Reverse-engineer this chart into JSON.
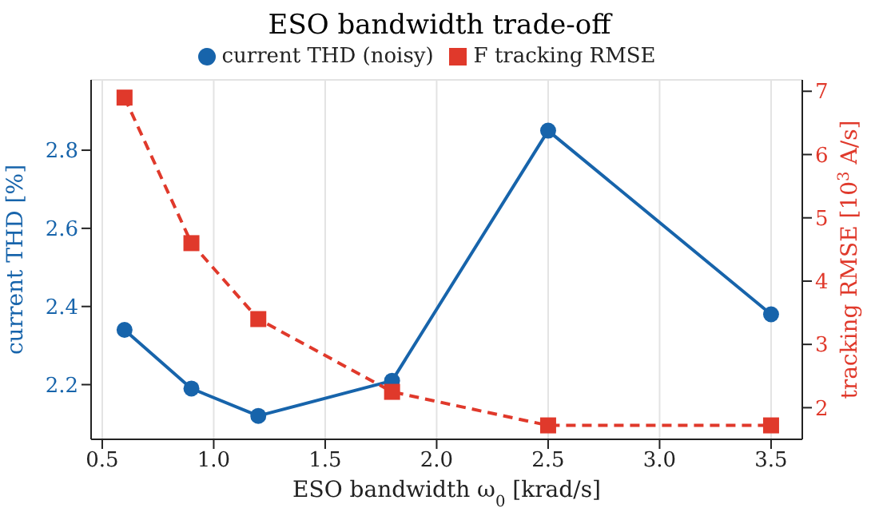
{
  "chart_data": {
    "type": "line",
    "title": "ESO bandwidth trade-off",
    "xlabel": "ESO bandwidth ω$_{0}$ [krad/s]",
    "ylabel": "current THD [%]",
    "y2label": "tracking RMSE [10$^{3}$ A/s]",
    "x": [
      0.6,
      0.9,
      1.2,
      1.8,
      2.5,
      3.5
    ],
    "series": [
      {
        "name": "current THD (noisy)",
        "color": "#1764ab",
        "values": [
          2.34,
          2.19,
          2.12,
          2.21,
          2.85,
          2.38
        ],
        "marker": "circle",
        "line_style": "solid"
      },
      {
        "name": "F tracking RMSE",
        "color": "#e0392b",
        "values": [
          6.9,
          4.6,
          3.4,
          2.25,
          1.72,
          1.72
        ],
        "marker": "square",
        "line_style": "dashed",
        "axis": "y2"
      }
    ],
    "xlim": [
      0.45,
      3.64
    ],
    "xticks": [
      {
        "value": 0.5,
        "label": "0.5"
      },
      {
        "value": 1,
        "label": "1.0"
      },
      {
        "value": 1.5,
        "label": "1.5"
      },
      {
        "value": 2,
        "label": "2.0"
      },
      {
        "value": 2.5,
        "label": "2.5"
      },
      {
        "value": 3,
        "label": "3.0"
      },
      {
        "value": 3.5,
        "label": "3.5"
      }
    ],
    "ylim": [
      2.06,
      2.98
    ],
    "yticks": [
      2.2,
      2.4,
      2.6,
      2.8
    ],
    "y2lim": [
      1.5,
      7.18
    ],
    "y2ticks": [
      2,
      3,
      4,
      5,
      6,
      7
    ],
    "grid": true,
    "legend": "top"
  }
}
